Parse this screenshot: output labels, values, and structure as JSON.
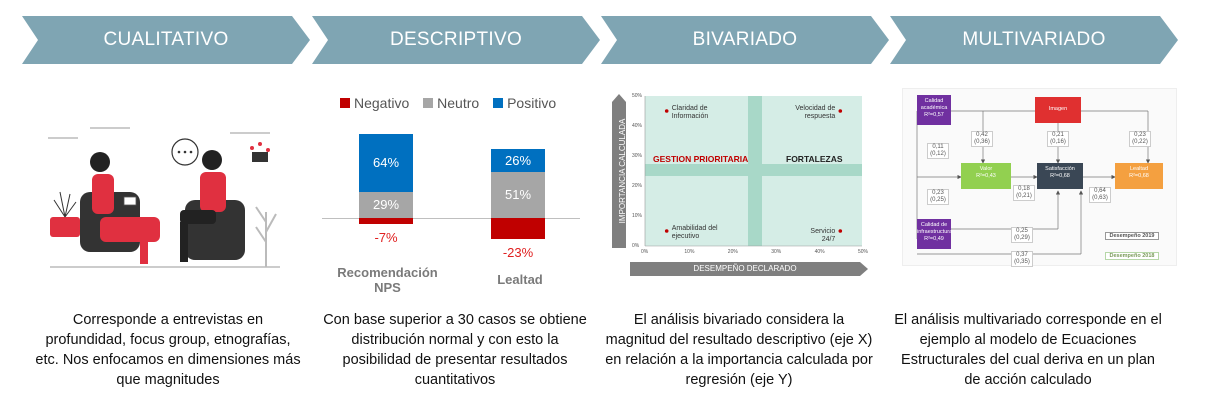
{
  "stages": [
    {
      "title": "CUALITATIVO",
      "description": "Corresponde a entrevistas en profundidad, focus group, etnografías, etc.  Nos enfocamos en dimensiones más que magnitudes"
    },
    {
      "title": "DESCRIPTIVO",
      "description": "Con base superior a 30 casos se obtiene distribución normal y con esto la posibilidad de presentar resultados cuantitativos"
    },
    {
      "title": "BIVARIADO",
      "description": "El análisis bivariado considera la magnitud del resultado descriptivo (eje X) en relación  a la importancia calculada por regresión (eje Y)"
    },
    {
      "title": "MULTIVARIADO",
      "description": "El análisis multivariado corresponde en el ejemplo al modelo de Ecuaciones Estructurales del cual deriva en un plan de acción calculado"
    }
  ],
  "colors": {
    "chevron": "#7fa5b3",
    "negativo": "#c00000",
    "neutro": "#a6a6a6",
    "positivo": "#0070c0",
    "quadrant_bg": "#d5ede6",
    "quadrant_band": "#a8d8c8"
  },
  "chart_data": [
    {
      "type": "bar",
      "stacked": true,
      "legend": [
        "Negativo",
        "Neutro",
        "Positivo"
      ],
      "categories": [
        "Recomendación NPS",
        "Lealtad"
      ],
      "series": [
        {
          "name": "Negativo",
          "values": [
            -7,
            -23
          ],
          "labels": [
            "-7%",
            "-23%"
          ]
        },
        {
          "name": "Neutro",
          "values": [
            29,
            51
          ],
          "labels": [
            "29%",
            "51%"
          ]
        },
        {
          "name": "Positivo",
          "values": [
            64,
            26
          ],
          "labels": [
            "64%",
            "26%"
          ]
        }
      ]
    },
    {
      "type": "scatter",
      "xlabel": "DESEMPEÑO DECLARADO",
      "ylabel": "IMPORTANCIA CALCULADA",
      "xticks": [
        "0%",
        "10%",
        "20%",
        "30%",
        "40%",
        "50%"
      ],
      "yticks": [
        "0%",
        "10%",
        "20%",
        "30%",
        "40%",
        "50%"
      ],
      "xlim": [
        0,
        50
      ],
      "ylim": [
        0,
        50
      ],
      "quadrants": [
        "GESTION PRIORITARIA",
        "FORTALEZAS"
      ],
      "points": [
        {
          "label": "Claridad de Información",
          "x": 5,
          "y": 45
        },
        {
          "label": "Velocidad de respuesta",
          "x": 45,
          "y": 45
        },
        {
          "label": "Amabilidad del ejecutivo",
          "x": 5,
          "y": 5
        },
        {
          "label": "Servicio 24/7",
          "x": 45,
          "y": 5
        }
      ]
    }
  ],
  "sem": {
    "nodes": {
      "calidad_academica": "Calidad académica\nR²=0,57",
      "imagen": "Imagen",
      "valor": "Valor\nR²=0,43",
      "satisfaccion": "Satisfacción\nR²=0,68",
      "lealtad": "Lealtad\nR²=0,68",
      "calidad_infra": "Calidad de infraestructura\nR²=0,49"
    },
    "coefs": [
      "0,42\n(0,36)",
      "0,21\n(0,16)",
      "0,23\n(0,22)",
      "0,11\n(0,12)",
      "0,18\n(0,21)",
      "0,64\n(0,63)",
      "0,23\n(0,25)",
      "0,25\n(0,29)",
      "0,37\n(0,35)"
    ],
    "legend": [
      "Desempeño 2019",
      "Desempeño 2018"
    ]
  }
}
